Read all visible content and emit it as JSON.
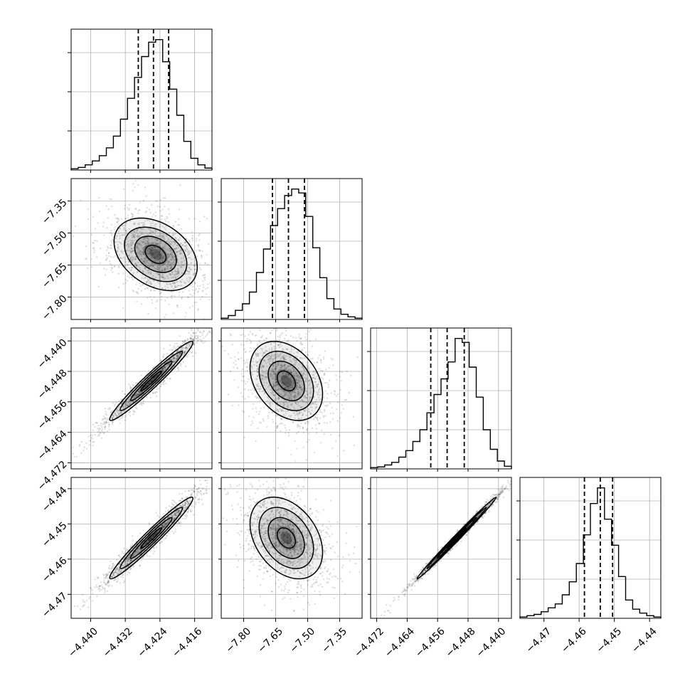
{
  "chart_data": {
    "type": "corner",
    "dimensions": 4,
    "ranges": [
      [
        -4.4445,
        -4.412
      ],
      [
        -7.905,
        -7.245
      ],
      [
        -4.4736,
        -4.4366
      ],
      [
        -4.4768,
        -4.4368
      ]
    ],
    "tick_values": [
      [
        -4.44,
        -4.432,
        -4.424,
        -4.416
      ],
      [
        -7.8,
        -7.65,
        -7.5,
        -7.35
      ],
      [
        -4.472,
        -4.464,
        -4.456,
        -4.448,
        -4.44
      ],
      [
        -4.47,
        -4.46,
        -4.45,
        -4.44
      ]
    ],
    "tick_labels": [
      [
        "−4.440",
        "−4.432",
        "−4.424",
        "−4.416"
      ],
      [
        "−7.80",
        "−7.65",
        "−7.50",
        "−7.35"
      ],
      [
        "−4.472",
        "−4.464",
        "−4.456",
        "−4.448",
        "−4.440"
      ],
      [
        "−4.47",
        "−4.46",
        "−4.45",
        "−4.44"
      ]
    ],
    "quantiles": [
      [
        -4.429,
        -4.4255,
        -4.422
      ],
      [
        -7.665,
        -7.59,
        -7.515
      ],
      [
        -4.4578,
        -4.4535,
        -4.449
      ],
      [
        -4.4585,
        -4.454,
        -4.4505
      ]
    ],
    "histogram_bins": 20,
    "histograms": [
      [
        0.01,
        0.02,
        0.04,
        0.07,
        0.11,
        0.17,
        0.26,
        0.39,
        0.55,
        0.71,
        0.87,
        0.98,
        1.0,
        0.83,
        0.62,
        0.42,
        0.22,
        0.09,
        0.04,
        0.015
      ],
      [
        0.01,
        0.03,
        0.07,
        0.12,
        0.21,
        0.36,
        0.54,
        0.72,
        0.85,
        0.95,
        1.0,
        0.97,
        0.79,
        0.55,
        0.32,
        0.16,
        0.08,
        0.04,
        0.02,
        0.01
      ],
      [
        0.01,
        0.015,
        0.03,
        0.05,
        0.09,
        0.14,
        0.21,
        0.3,
        0.43,
        0.57,
        0.69,
        0.82,
        1.0,
        0.97,
        0.78,
        0.55,
        0.3,
        0.15,
        0.06,
        0.02
      ],
      [
        0.01,
        0.02,
        0.03,
        0.05,
        0.08,
        0.11,
        0.18,
        0.28,
        0.42,
        0.64,
        0.88,
        1.0,
        0.76,
        0.56,
        0.32,
        0.14,
        0.07,
        0.04,
        0.02,
        0.01
      ]
    ],
    "pairs": [
      {
        "row": 1,
        "col": 0,
        "center": [
          -4.425,
          -7.6
        ],
        "sigma": [
          0.0048,
          0.085
        ],
        "rho": -0.35
      },
      {
        "row": 2,
        "col": 0,
        "center": [
          -4.426,
          -4.4505
        ],
        "sigma": [
          0.0048,
          0.0052
        ],
        "rho": 0.97
      },
      {
        "row": 2,
        "col": 1,
        "center": [
          -7.6,
          -4.4505
        ],
        "sigma": [
          0.085,
          0.0052
        ],
        "rho": -0.33
      },
      {
        "row": 3,
        "col": 0,
        "center": [
          -4.426,
          -4.454
        ],
        "sigma": [
          0.0048,
          0.0058
        ],
        "rho": 0.97
      },
      {
        "row": 3,
        "col": 1,
        "center": [
          -7.6,
          -4.454
        ],
        "sigma": [
          0.085,
          0.0058
        ],
        "rho": -0.35
      },
      {
        "row": 3,
        "col": 2,
        "center": [
          -4.451,
          -4.454
        ],
        "sigma": [
          0.0052,
          0.0058
        ],
        "rho": 0.995
      }
    ],
    "contour_levels_sigma": [
      0.5,
      1.0,
      1.5,
      2.0
    ],
    "grid": true,
    "colors": {
      "line": "#000000",
      "grid": "#b0b0b0",
      "points": "#000000",
      "density": "#000000"
    }
  }
}
